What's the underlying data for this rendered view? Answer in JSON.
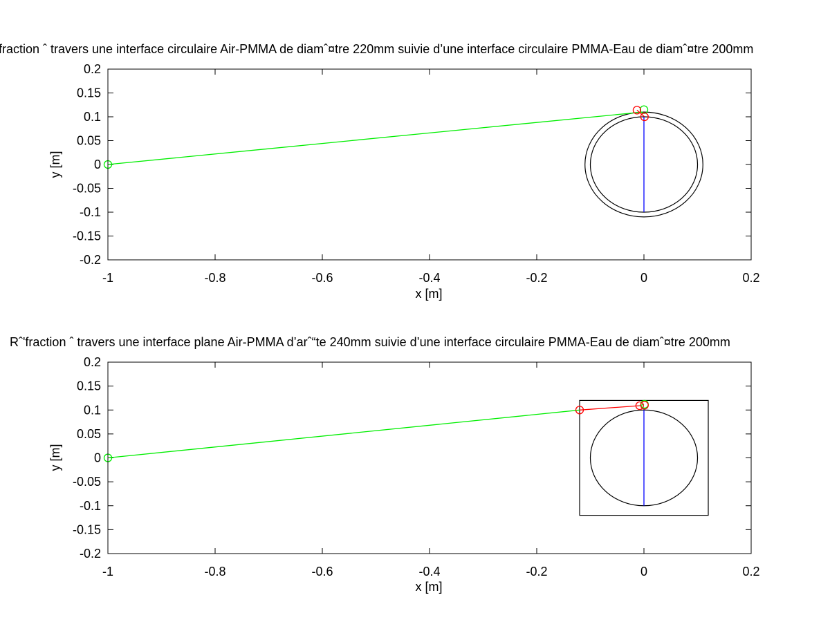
{
  "chart_data": [
    {
      "type": "line",
      "title": "fraction ˆ  travers une interface circulaire Air-PMMA de diamˆ¤tre 220mm suivie d’une interface circulaire PMMA-Eau de diamˆ¤tre 200mm",
      "xlabel": "x [m]",
      "ylabel": "y [m]",
      "xlim": [
        -1,
        0.2
      ],
      "ylim": [
        -0.2,
        0.2
      ],
      "xticks": [
        "-1",
        "-0.8",
        "-0.6",
        "-0.4",
        "-0.2",
        "0",
        "0.2"
      ],
      "xtick_values": [
        -1,
        -0.8,
        -0.6,
        -0.4,
        -0.2,
        0,
        0.2
      ],
      "yticks": [
        "0.2",
        "0.15",
        "0.1",
        "0.05",
        "0",
        "-0.05",
        "-0.1",
        "-0.15",
        "-0.2"
      ],
      "ytick_values": [
        0.2,
        0.15,
        0.1,
        0.05,
        0,
        -0.05,
        -0.1,
        -0.15,
        -0.2
      ],
      "grid": false,
      "shapes": [
        {
          "kind": "circle",
          "cx": 0,
          "cy": 0,
          "r": 0.11,
          "color": "#000000"
        },
        {
          "kind": "circle",
          "cx": 0,
          "cy": 0,
          "r": 0.1,
          "color": "#000000"
        }
      ],
      "series": [
        {
          "color": "#00ee00",
          "x": [
            -1,
            -0.002
          ],
          "y": [
            0,
            0.11
          ]
        },
        {
          "color": "#ff0000",
          "x": [
            -0.013,
            0.001
          ],
          "y": [
            0.114,
            0.1
          ]
        },
        {
          "color": "#0000ff",
          "x": [
            0,
            0
          ],
          "y": [
            0.1,
            -0.1
          ]
        }
      ],
      "markers": [
        {
          "color": "#00ee00",
          "x": -1,
          "y": 0
        },
        {
          "color": "#00ee00",
          "x": 0,
          "y": 0.115
        },
        {
          "color": "#ff0000",
          "x": -0.013,
          "y": 0.114
        },
        {
          "color": "#ff0000",
          "x": 0.001,
          "y": 0.1
        }
      ]
    },
    {
      "type": "line",
      "title": "Rˆ'fraction ˆ  travers une interface plane Air-PMMA d’arˆ“te 240mm suivie d’une interface circulaire PMMA-Eau de diamˆ¤tre 200mm",
      "xlabel": "x [m]",
      "ylabel": "y [m]",
      "xlim": [
        -1,
        0.2
      ],
      "ylim": [
        -0.2,
        0.2
      ],
      "xticks": [
        "-1",
        "-0.8",
        "-0.6",
        "-0.4",
        "-0.2",
        "0",
        "0.2"
      ],
      "xtick_values": [
        -1,
        -0.8,
        -0.6,
        -0.4,
        -0.2,
        0,
        0.2
      ],
      "yticks": [
        "0.2",
        "0.15",
        "0.1",
        "0.05",
        "0",
        "-0.05",
        "-0.1",
        "-0.15",
        "-0.2"
      ],
      "ytick_values": [
        0.2,
        0.15,
        0.1,
        0.05,
        0,
        -0.05,
        -0.1,
        -0.15,
        -0.2
      ],
      "grid": false,
      "shapes": [
        {
          "kind": "rect",
          "x0": -0.12,
          "y0": -0.12,
          "x1": 0.12,
          "y1": 0.12,
          "color": "#000000"
        },
        {
          "kind": "circle",
          "cx": 0,
          "cy": 0,
          "r": 0.1,
          "color": "#000000"
        }
      ],
      "series": [
        {
          "color": "#00ee00",
          "x": [
            -1,
            -0.12
          ],
          "y": [
            0,
            0.1
          ]
        },
        {
          "color": "#ff0000",
          "x": [
            -0.12,
            -0.008
          ],
          "y": [
            0.1,
            0.109
          ]
        },
        {
          "color": "#00ee00",
          "x": [
            -0.008,
            0
          ],
          "y": [
            0.109,
            0.112
          ]
        },
        {
          "color": "#0000ff",
          "x": [
            0,
            0
          ],
          "y": [
            0.1,
            -0.1
          ]
        }
      ],
      "markers": [
        {
          "color": "#00ee00",
          "x": -1,
          "y": 0
        },
        {
          "color": "#ff0000",
          "x": -0.12,
          "y": 0.1
        },
        {
          "color": "#ff0000",
          "x": -0.008,
          "y": 0.109
        },
        {
          "color": "#00ee00",
          "x": 0.001,
          "y": 0.112
        },
        {
          "color": "#ff0000",
          "x": 0.001,
          "y": 0.11
        }
      ]
    }
  ]
}
